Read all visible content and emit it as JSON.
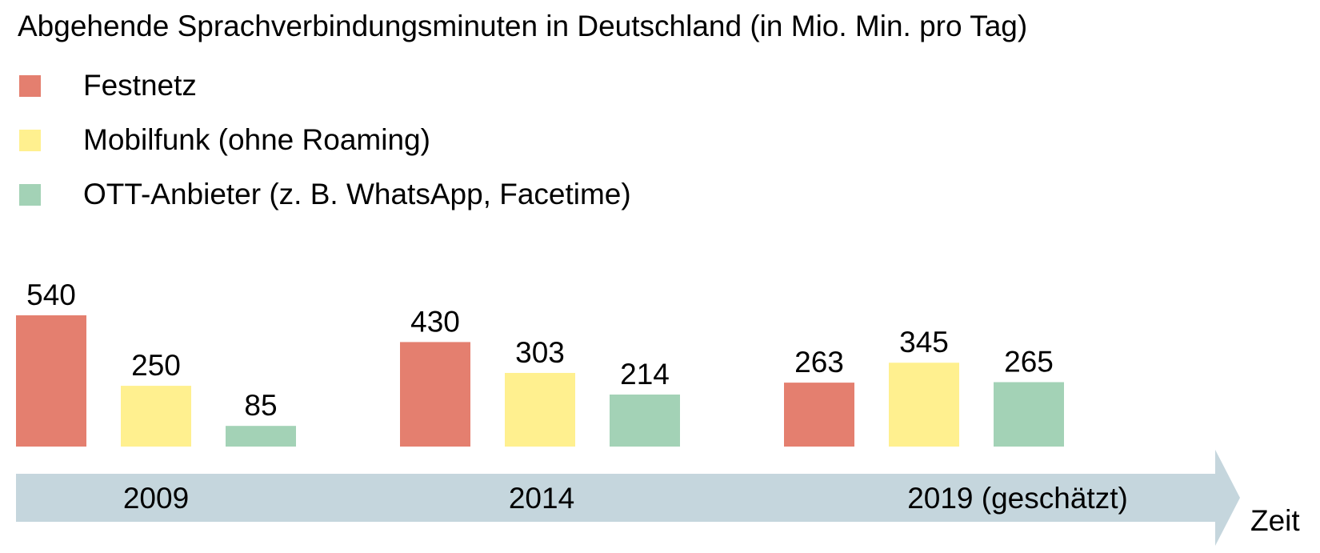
{
  "chart_data": {
    "type": "bar",
    "title": "Abgehende Sprachverbindungsminuten in Deutschland (in Mio. Min. pro Tag)",
    "categories": [
      "2009",
      "2014",
      "2019 (geschätzt)"
    ],
    "series": [
      {
        "name": "Festnetz",
        "color": "#e47f6f",
        "values": [
          540,
          430,
          263
        ]
      },
      {
        "name": "Mobilfunk (ohne Roaming)",
        "color": "#fff08f",
        "values": [
          250,
          303,
          345
        ]
      },
      {
        "name": "OTT-Anbieter (z. B. WhatsApp, Facetime)",
        "color": "#a3d2b6",
        "values": [
          85,
          214,
          265
        ]
      }
    ],
    "axis_label": "Zeit",
    "axis_color": "#c5d6dd",
    "legend_position": "top-left",
    "grid": false
  }
}
